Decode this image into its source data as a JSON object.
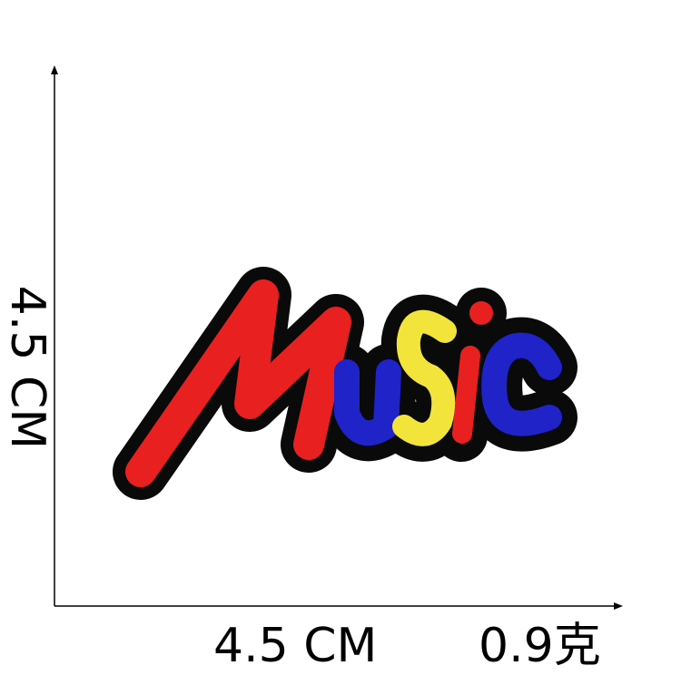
{
  "dimensions": {
    "height_label": "4.5 CM",
    "width_label": "4.5 CM",
    "weight_label": "0.9克"
  },
  "patch": {
    "text": "Music",
    "colors": {
      "outline": "#0a0a0a",
      "M": "#e8201f",
      "u": "#1f23c8",
      "s": "#f2e43a",
      "i": "#e8201f",
      "c": "#1f23c8"
    }
  }
}
